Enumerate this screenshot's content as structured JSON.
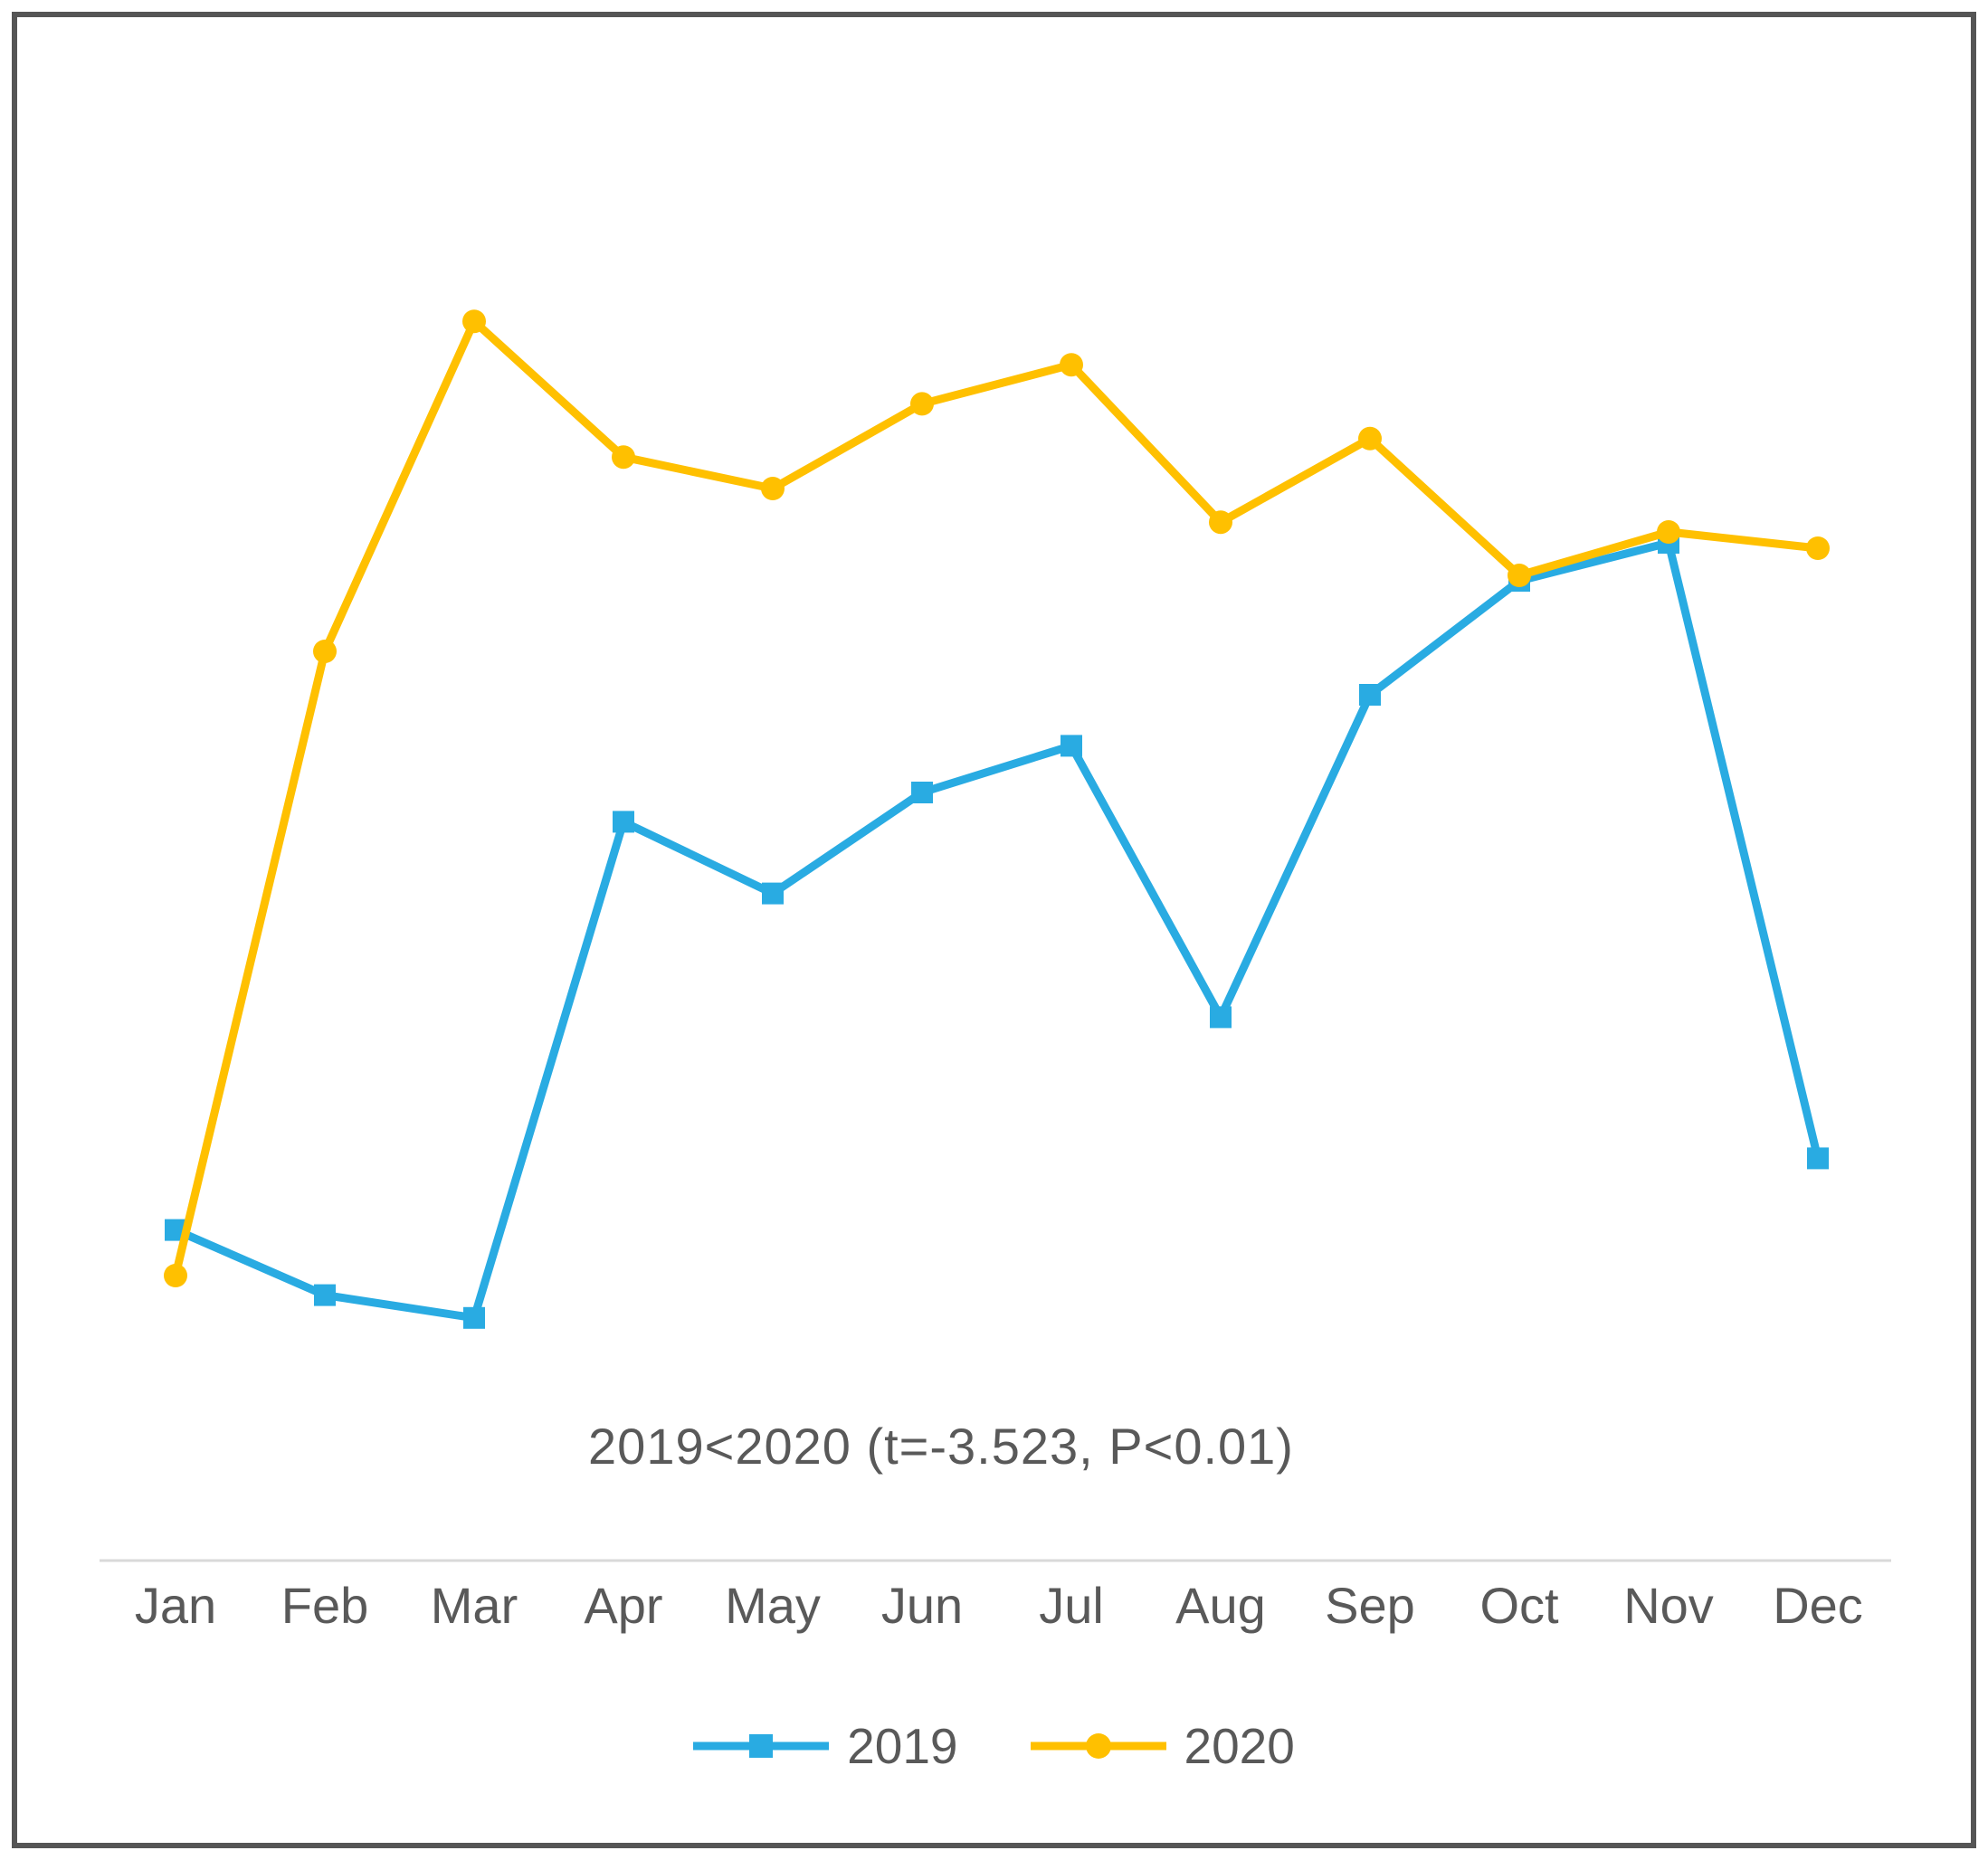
{
  "chart_data": {
    "type": "line",
    "categories": [
      "Jan",
      "Feb",
      "Mar",
      "Apr",
      "May",
      "Jun",
      "Jul",
      "Aug",
      "Sep",
      "Oct",
      "Nov",
      "Dec"
    ],
    "series": [
      {
        "name": "2019",
        "color": "#29ABE2",
        "marker": "square",
        "values": [
          11.7,
          5.7,
          3.6,
          49.3,
          42.7,
          52,
          56.3,
          31.3,
          61,
          71.5,
          75,
          18.3
        ]
      },
      {
        "name": "2020",
        "color": "#FFC000",
        "marker": "circle",
        "values": [
          7.5,
          65,
          95.4,
          82.9,
          80,
          87.8,
          91.4,
          76.9,
          84.6,
          72,
          76,
          74.5
        ]
      }
    ],
    "title": "",
    "xlabel": "",
    "ylabel": "",
    "ylim": [
      0,
      100
    ],
    "y_axis_visible": false,
    "value_scale": "relative units (no y-axis shown in chart)",
    "grid": false,
    "legend_position": "bottom-center",
    "annotation": "2019<2020 (t=-3.523, P<0.01)",
    "axis_line_color": "#D9D9D9",
    "text_color": "#595959",
    "frame_border_color": "#555555"
  }
}
